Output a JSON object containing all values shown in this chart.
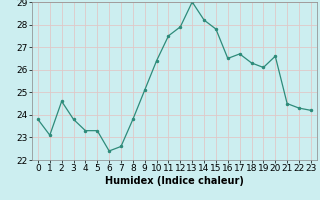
{
  "x": [
    0,
    1,
    2,
    3,
    4,
    5,
    6,
    7,
    8,
    9,
    10,
    11,
    12,
    13,
    14,
    15,
    16,
    17,
    18,
    19,
    20,
    21,
    22,
    23
  ],
  "y": [
    23.8,
    23.1,
    24.6,
    23.8,
    23.3,
    23.3,
    22.4,
    22.6,
    23.8,
    25.1,
    26.4,
    27.5,
    27.9,
    29.0,
    28.2,
    27.8,
    26.5,
    26.7,
    26.3,
    26.1,
    26.6,
    24.5,
    24.3,
    24.2
  ],
  "line_color": "#2e8b7a",
  "marker": ".",
  "marker_size": 3,
  "bg_color": "#cceef0",
  "grid_color": "#e0c8c8",
  "xlabel": "Humidex (Indice chaleur)",
  "ylim": [
    22,
    29
  ],
  "xlim": [
    -0.5,
    23.5
  ],
  "yticks": [
    22,
    23,
    24,
    25,
    26,
    27,
    28,
    29
  ],
  "xticks": [
    0,
    1,
    2,
    3,
    4,
    5,
    6,
    7,
    8,
    9,
    10,
    11,
    12,
    13,
    14,
    15,
    16,
    17,
    18,
    19,
    20,
    21,
    22,
    23
  ],
  "xlabel_fontsize": 7,
  "tick_fontsize": 6.5
}
